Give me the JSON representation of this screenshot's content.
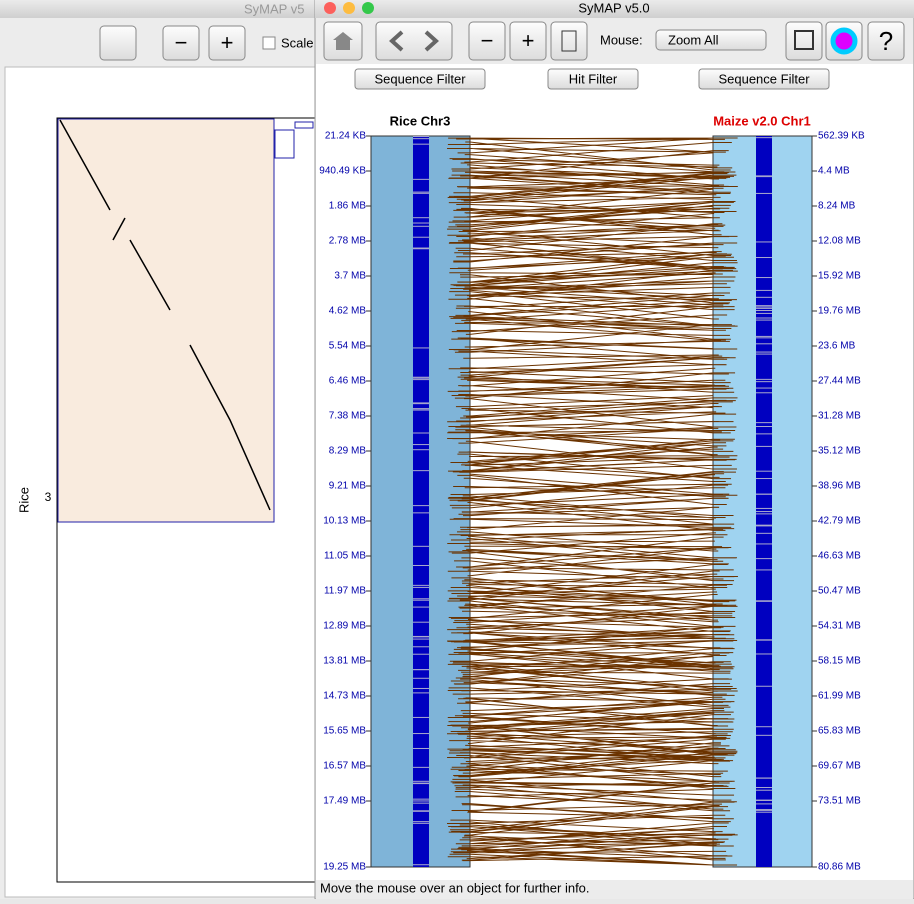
{
  "left_window": {
    "title": "SyMAP v5",
    "scale_label": "Scale",
    "axis_label": "Rice",
    "chr_label": "3"
  },
  "window": {
    "title": "SyMAP v5.0",
    "mouse_label": "Mouse:",
    "mouse_mode": "Zoom All",
    "filters": [
      "Sequence Filter",
      "Hit Filter",
      "Sequence Filter"
    ],
    "left_track": {
      "title": "Rice Chr3",
      "ticks": [
        "21.24 KB",
        "940.49 KB",
        "1.86 MB",
        "2.78 MB",
        "3.7 MB",
        "4.62 MB",
        "5.54 MB",
        "6.46 MB",
        "7.38 MB",
        "8.29 MB",
        "9.21 MB",
        "10.13 MB",
        "11.05 MB",
        "11.97 MB",
        "12.89 MB",
        "13.81 MB",
        "14.73 MB",
        "15.65 MB",
        "16.57 MB",
        "17.49 MB",
        "19.25 MB"
      ]
    },
    "right_track": {
      "title": "Maize v2.0 Chr1",
      "ticks": [
        "562.39 KB",
        "4.4 MB",
        "8.24 MB",
        "12.08 MB",
        "15.92 MB",
        "19.76 MB",
        "23.6 MB",
        "27.44 MB",
        "31.28 MB",
        "35.12 MB",
        "38.96 MB",
        "42.79 MB",
        "46.63 MB",
        "50.47 MB",
        "54.31 MB",
        "58.15 MB",
        "61.99 MB",
        "65.83 MB",
        "69.67 MB",
        "73.51 MB",
        "80.86 MB"
      ]
    },
    "status": "Move the mouse over an object for further info."
  }
}
